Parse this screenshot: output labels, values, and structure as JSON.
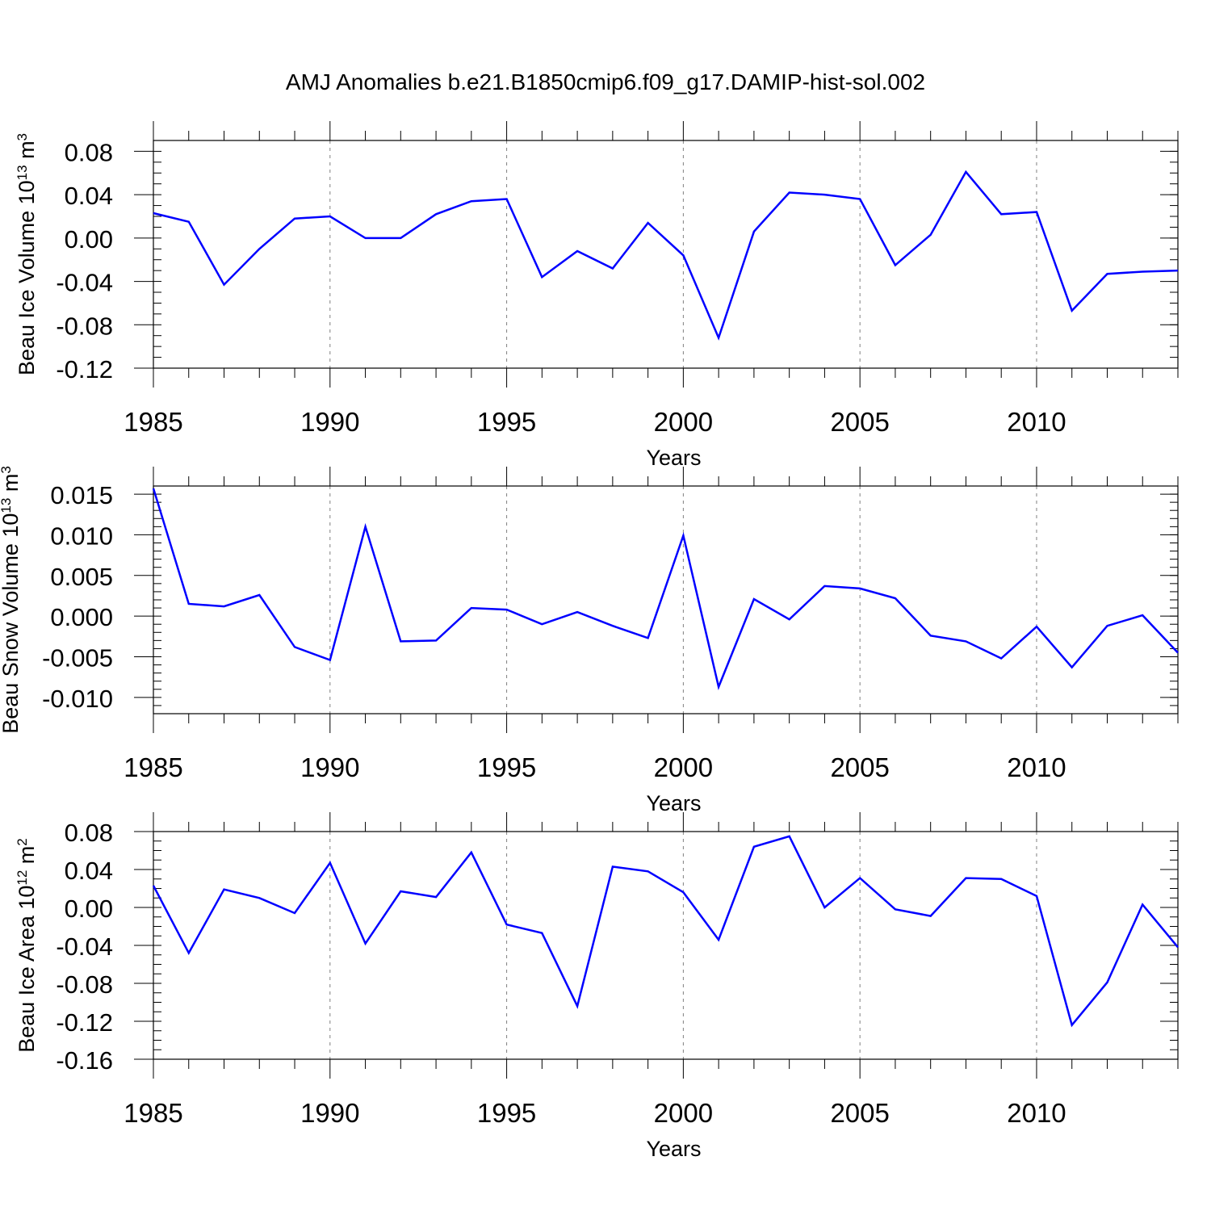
{
  "title": "AMJ Anomalies b.e21.B1850cmip6.f09_g17.DAMIP-hist-sol.002",
  "colors": {
    "line": "#0000ff",
    "axis": "#000000",
    "grid": "#808080",
    "background": "#ffffff"
  },
  "chart_data": [
    {
      "type": "line",
      "ylabel": {
        "main": "Beau Ice Volume 10",
        "exp": "13",
        "unit": " m",
        "unitexp": "3"
      },
      "xlabel": "Years",
      "xlim": [
        1985,
        2014
      ],
      "ylim": [
        -0.12,
        0.09
      ],
      "xticks": [
        "1985",
        "1990",
        "1995",
        "2000",
        "2005",
        "2010"
      ],
      "yticks": [
        "0.08",
        "0.04",
        "0.00",
        "-0.04",
        "-0.08",
        "-0.12"
      ],
      "grid": "vertical dashed at major x ticks",
      "series": [
        {
          "x": [
            1985,
            1986,
            1987,
            1988,
            1989,
            1990,
            1991,
            1992,
            1993,
            1994,
            1995,
            1996,
            1997,
            1998,
            1999,
            2000,
            2001,
            2002,
            2003,
            2004,
            2005,
            2006,
            2007,
            2008,
            2009,
            2010,
            2011,
            2012,
            2013,
            2014
          ],
          "values": [
            0.023,
            0.015,
            -0.043,
            -0.01,
            0.018,
            0.02,
            0.0,
            0.0,
            0.022,
            0.034,
            0.036,
            -0.036,
            -0.012,
            -0.028,
            0.014,
            -0.016,
            -0.092,
            0.006,
            0.042,
            0.04,
            0.036,
            -0.025,
            0.003,
            0.061,
            0.022,
            0.024,
            -0.067,
            -0.033,
            -0.031,
            -0.03
          ]
        }
      ]
    },
    {
      "type": "line",
      "ylabel": {
        "main": "Beau Snow Volume 10",
        "exp": "13",
        "unit": " m",
        "unitexp": "3"
      },
      "xlabel": "Years",
      "xlim": [
        1985,
        2014
      ],
      "ylim": [
        -0.012,
        0.016
      ],
      "xticks": [
        "1985",
        "1990",
        "1995",
        "2000",
        "2005",
        "2010"
      ],
      "yticks": [
        "0.015",
        "0.010",
        "0.005",
        "0.000",
        "-0.005",
        "-0.010"
      ],
      "grid": "vertical dashed at major x ticks",
      "series": [
        {
          "x": [
            1985,
            1986,
            1987,
            1988,
            1989,
            1990,
            1991,
            1992,
            1993,
            1994,
            1995,
            1996,
            1997,
            1998,
            1999,
            2000,
            2001,
            2002,
            2003,
            2004,
            2005,
            2006,
            2007,
            2008,
            2009,
            2010,
            2011,
            2012,
            2013,
            2014
          ],
          "values": [
            0.0157,
            0.0015,
            0.0012,
            0.0026,
            -0.0038,
            -0.0054,
            0.011,
            -0.0031,
            -0.003,
            0.001,
            0.0008,
            -0.001,
            0.0005,
            -0.0012,
            -0.0027,
            0.0099,
            -0.0087,
            0.0021,
            -0.0004,
            0.0037,
            0.0034,
            0.0022,
            -0.0024,
            -0.0031,
            -0.0052,
            -0.0013,
            -0.0063,
            -0.0012,
            0.0001,
            -0.0045
          ]
        }
      ]
    },
    {
      "type": "line",
      "ylabel": {
        "main": "Beau Ice Area 10",
        "exp": "12",
        "unit": " m",
        "unitexp": "2"
      },
      "xlabel": "Years",
      "xlim": [
        1985,
        2014
      ],
      "ylim": [
        -0.16,
        0.08
      ],
      "xticks": [
        "1985",
        "1990",
        "1995",
        "2000",
        "2005",
        "2010"
      ],
      "yticks": [
        "0.08",
        "0.04",
        "0.00",
        "-0.04",
        "-0.08",
        "-0.12",
        "-0.16"
      ],
      "grid": "vertical dashed at major x ticks",
      "series": [
        {
          "x": [
            1985,
            1986,
            1987,
            1988,
            1989,
            1990,
            1991,
            1992,
            1993,
            1994,
            1995,
            1996,
            1997,
            1998,
            1999,
            2000,
            2001,
            2002,
            2003,
            2004,
            2005,
            2006,
            2007,
            2008,
            2009,
            2010,
            2011,
            2012,
            2013,
            2014
          ],
          "values": [
            0.023,
            -0.048,
            0.019,
            0.01,
            -0.006,
            0.047,
            -0.038,
            0.017,
            0.011,
            0.058,
            -0.018,
            -0.027,
            -0.104,
            0.043,
            0.038,
            0.016,
            -0.034,
            0.064,
            0.075,
            0.0,
            0.031,
            -0.002,
            -0.009,
            0.031,
            0.03,
            0.012,
            -0.124,
            -0.079,
            0.003,
            -0.042
          ]
        }
      ]
    }
  ]
}
